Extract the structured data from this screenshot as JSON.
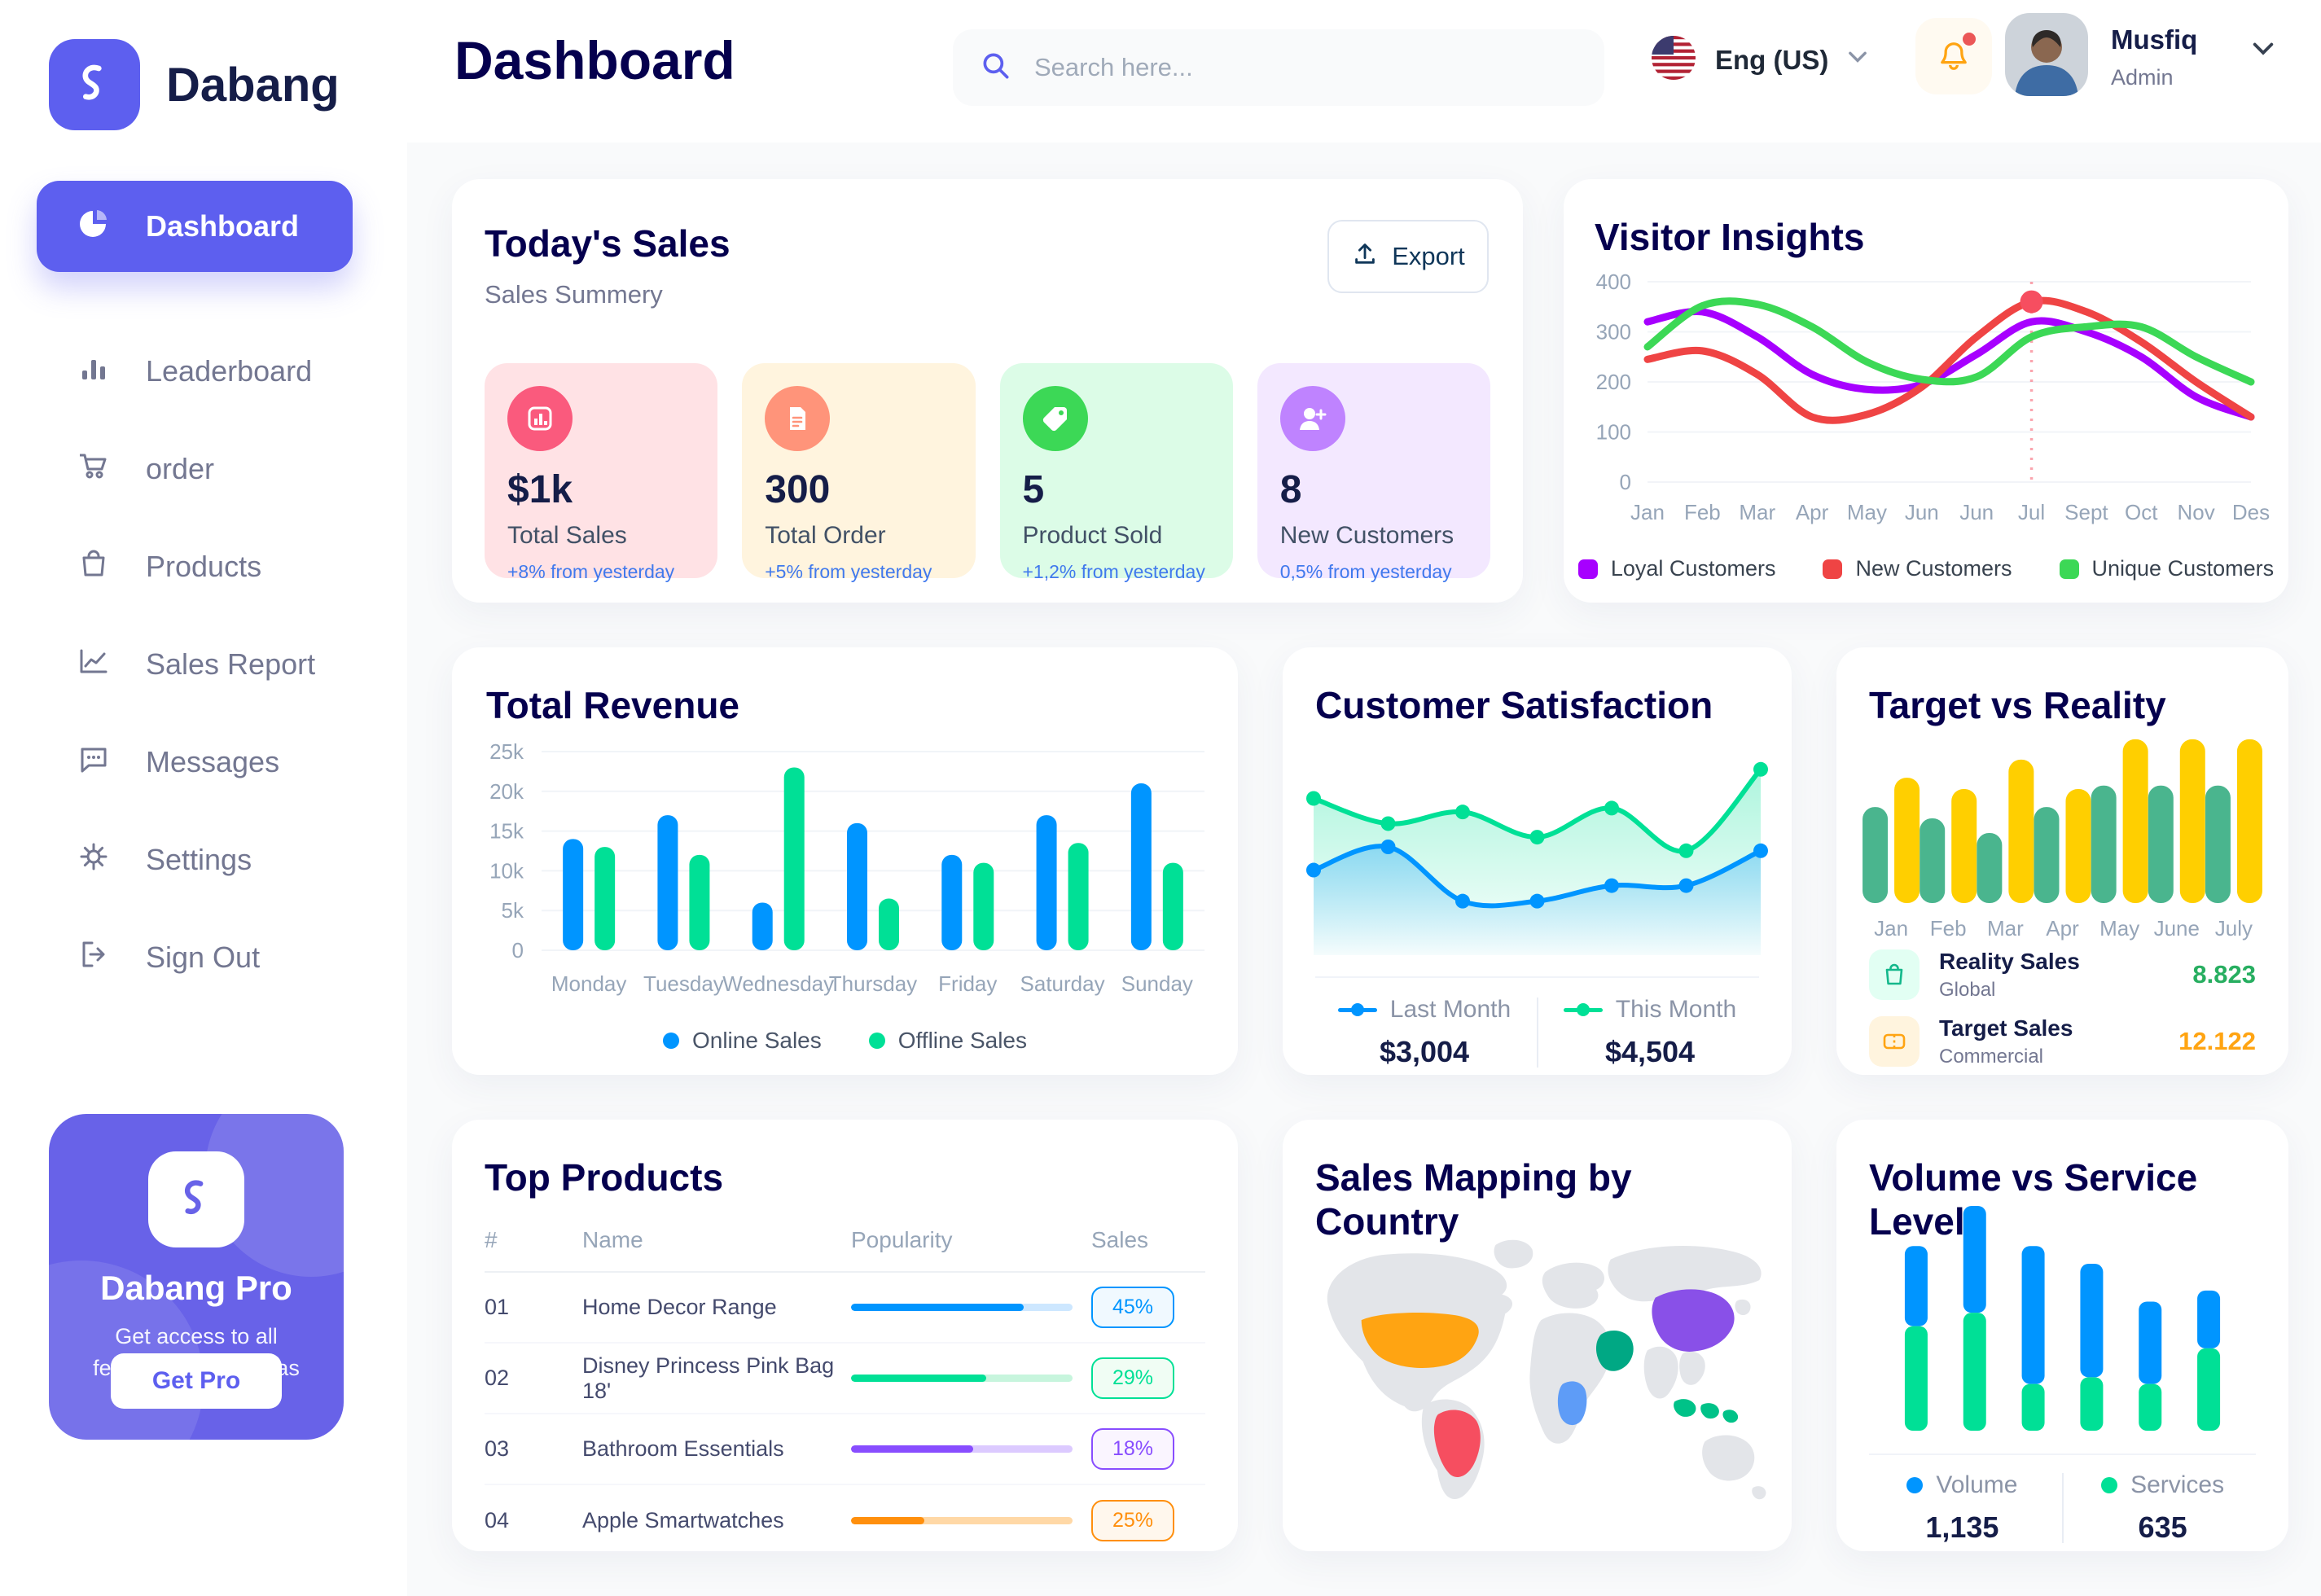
{
  "app": {
    "name": "Dabang"
  },
  "header": {
    "title": "Dashboard",
    "search_placeholder": "Search here...",
    "language": "Eng (US)",
    "user": {
      "name": "Musfiq",
      "role": "Admin"
    }
  },
  "sidebar": {
    "items": [
      {
        "label": "Dashboard",
        "icon": "pie-chart-icon",
        "active": true
      },
      {
        "label": "Leaderboard",
        "icon": "bar-chart-icon",
        "active": false
      },
      {
        "label": "order",
        "icon": "cart-icon",
        "active": false
      },
      {
        "label": "Products",
        "icon": "bag-icon",
        "active": false
      },
      {
        "label": "Sales Report",
        "icon": "line-chart-icon",
        "active": false
      },
      {
        "label": "Messages",
        "icon": "message-icon",
        "active": false
      },
      {
        "label": "Settings",
        "icon": "gear-icon",
        "active": false
      },
      {
        "label": "Sign Out",
        "icon": "sign-out-icon",
        "active": false
      }
    ],
    "pro_card": {
      "title": "Dabang Pro",
      "description": "Get access to all features on tetumbas",
      "button_label": "Get Pro"
    }
  },
  "today_sales": {
    "title": "Today's Sales",
    "subtitle": "Sales Summery",
    "export_label": "Export",
    "delta_color": "#4079ED",
    "stats": [
      {
        "value": "$1k",
        "label": "Total Sales",
        "delta": "+8% from yesterday",
        "bg": "#FFE2E5",
        "accent": "#FA5A7D",
        "icon": "sales-chart-icon"
      },
      {
        "value": "300",
        "label": "Total Order",
        "delta": "+5% from yesterday",
        "bg": "#FFF4DE",
        "accent": "#FF947A",
        "icon": "order-file-icon"
      },
      {
        "value": "5",
        "label": "Product Sold",
        "delta": "+1,2% from yesterday",
        "bg": "#DCFCE7",
        "accent": "#3CD856",
        "icon": "tag-icon"
      },
      {
        "value": "8",
        "label": "New Customers",
        "delta": "0,5% from yesterday",
        "bg": "#F3E8FF",
        "accent": "#BF83FF",
        "icon": "user-plus-icon"
      }
    ]
  },
  "chart_data": [
    {
      "id": "visitor-insights",
      "type": "line",
      "title": "Visitor Insights",
      "x": [
        "Jan",
        "Feb",
        "Mar",
        "Apr",
        "May",
        "Jun",
        "Jun",
        "Jul",
        "Sept",
        "Oct",
        "Nov",
        "Des"
      ],
      "series": [
        {
          "name": "Loyal Customers",
          "color": "#A700FF",
          "values": [
            320,
            340,
            290,
            215,
            185,
            195,
            255,
            320,
            300,
            250,
            170,
            130
          ]
        },
        {
          "name": "New Customers",
          "color": "#EF4444",
          "values": [
            245,
            262,
            215,
            130,
            135,
            190,
            290,
            360,
            340,
            280,
            200,
            130
          ]
        },
        {
          "name": "Unique Customers",
          "color": "#3CD856",
          "values": [
            270,
            352,
            355,
            310,
            240,
            205,
            210,
            290,
            310,
            310,
            250,
            200
          ]
        }
      ],
      "ylim": [
        0,
        400
      ],
      "yticks": [
        0,
        100,
        200,
        300,
        400
      ],
      "highlight": {
        "x_index": 7,
        "series": "New Customers"
      },
      "grid": true,
      "legend_position": "bottom"
    },
    {
      "id": "total-revenue",
      "type": "bar",
      "title": "Total Revenue",
      "categories": [
        "Monday",
        "Tuesday",
        "Wednesday",
        "Thursday",
        "Friday",
        "Saturday",
        "Sunday"
      ],
      "series": [
        {
          "name": "Online Sales",
          "color": "#0095FF",
          "values": [
            14,
            17,
            6,
            16,
            12,
            17,
            21
          ]
        },
        {
          "name": "Offline Sales",
          "color": "#00E096",
          "values": [
            13,
            12,
            23,
            6.5,
            11,
            13.5,
            11
          ]
        }
      ],
      "ylim": [
        0,
        25
      ],
      "yticks": [
        0,
        5,
        10,
        15,
        20,
        25
      ],
      "ytick_labels": [
        "0",
        "5k",
        "10k",
        "15k",
        "20k",
        "25k"
      ],
      "grid": true,
      "legend_position": "bottom"
    },
    {
      "id": "customer-satisfaction",
      "type": "area",
      "title": "Customer Satisfaction",
      "series": [
        {
          "name": "Last Month",
          "color": "#0095FF",
          "total": "$3,004",
          "values": [
            38,
            50,
            22,
            22,
            30,
            30,
            48
          ]
        },
        {
          "name": "This Month",
          "color": "#00E096",
          "total": "$4,504",
          "values": [
            75,
            62,
            68,
            55,
            70,
            48,
            90
          ]
        }
      ],
      "ylim": [
        0,
        100
      ],
      "grid": false,
      "legend_position": "bottom"
    },
    {
      "id": "target-vs-reality",
      "type": "bar",
      "title": "Target vs Reality",
      "categories": [
        "Jan",
        "Feb",
        "Mar",
        "Apr",
        "May",
        "June",
        "July"
      ],
      "series": [
        {
          "name": "Reality Sales",
          "subtitle": "Global",
          "color": "#4AB58E",
          "value_label": "8.823",
          "value_color": "#27AE60",
          "icon": "shopping-bag-icon",
          "icon_bg": "#E2FFF3",
          "values": [
            8.5,
            7.5,
            6.2,
            8.5,
            10.4,
            10.4,
            10.4
          ]
        },
        {
          "name": "Target Sales",
          "subtitle": "Commercial",
          "color": "#FFCF00",
          "value_label": "12.122",
          "value_color": "#FFA412",
          "icon": "ticket-icon",
          "icon_bg": "#FFF4DE",
          "values": [
            11.1,
            10.1,
            12.7,
            10.1,
            14.5,
            14.5,
            14.5
          ]
        }
      ],
      "ylim": [
        0,
        15
      ],
      "grid": false,
      "legend_position": "bottom-list"
    },
    {
      "id": "top-products",
      "type": "table",
      "title": "Top Products",
      "columns": [
        "#",
        "Name",
        "Popularity",
        "Sales"
      ],
      "rows": [
        {
          "num": "01",
          "name": "Home Decor Range",
          "popularity_pct": 78,
          "sales": "45%",
          "color": "#0095FF",
          "track": "#CDE7FF",
          "badge_bg": "#F0F9FF"
        },
        {
          "num": "02",
          "name": "Disney Princess Pink Bag 18'",
          "popularity_pct": 61,
          "sales": "29%",
          "color": "#00E096",
          "track": "#C7F5DD",
          "badge_bg": "#F0FDF4"
        },
        {
          "num": "03",
          "name": "Bathroom Essentials",
          "popularity_pct": 55,
          "sales": "18%",
          "color": "#884DFF",
          "track": "#DCCAFF",
          "badge_bg": "#FAF5FF"
        },
        {
          "num": "04",
          "name": "Apple Smartwatches",
          "popularity_pct": 33,
          "sales": "25%",
          "color": "#FF8F0D",
          "track": "#FFD8A6",
          "badge_bg": "#FFF7ED"
        }
      ]
    },
    {
      "id": "sales-map",
      "type": "map",
      "title": "Sales Mapping by Country",
      "land_color": "#E3E5E9",
      "countries": [
        {
          "name": "United States",
          "color": "#FFA412"
        },
        {
          "name": "Brazil",
          "color": "#F64E60"
        },
        {
          "name": "China",
          "color": "#8950E8"
        },
        {
          "name": "Saudi Arabia",
          "color": "#00A884"
        },
        {
          "name": "DR Congo",
          "color": "#5E9CF7"
        },
        {
          "name": "Indonesia",
          "color": "#00C288"
        }
      ]
    },
    {
      "id": "volume-service",
      "type": "stacked-bar",
      "title": "Volume vs Service Level",
      "series": [
        {
          "name": "Volume",
          "color": "#0095FF",
          "total": "1,135",
          "values": [
            36,
            48,
            62,
            51,
            37,
            26
          ]
        },
        {
          "name": "Services",
          "color": "#00E096",
          "total": "635",
          "values": [
            47,
            53,
            21,
            24,
            21,
            37
          ]
        }
      ],
      "legend_position": "bottom"
    }
  ]
}
